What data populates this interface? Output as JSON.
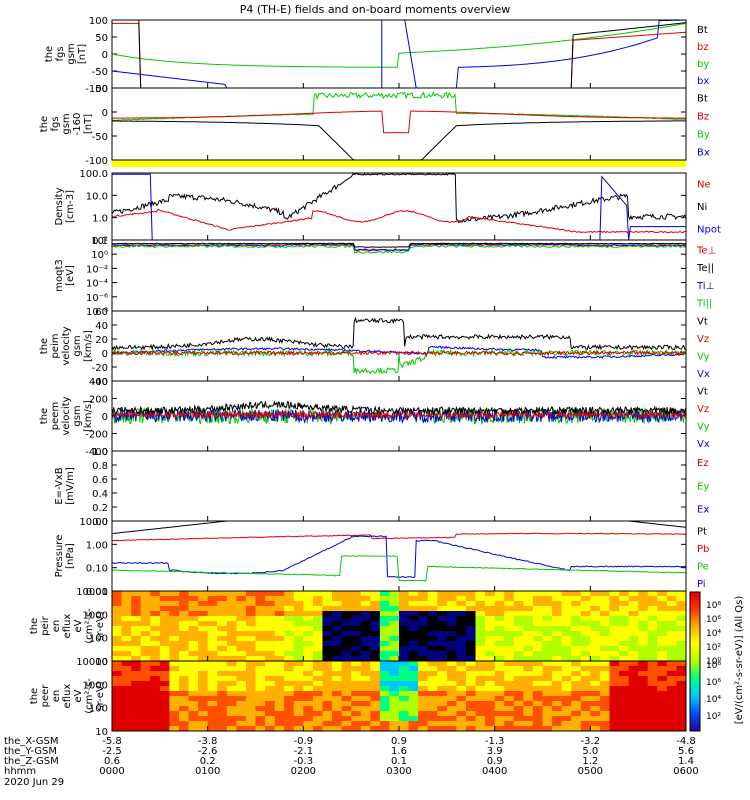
{
  "title": "P4 (TH-E) fields and on-board moments overview",
  "chart_data": {
    "type": "line",
    "x_range_hhmm": [
      "0000",
      "0600"
    ],
    "panels": [
      {
        "id": "fgs",
        "ylabel": [
          "the",
          "fgs",
          "gsm",
          "[nT]"
        ],
        "yrange": [
          -100,
          100
        ],
        "yticks": [
          "100",
          "50",
          "0",
          "-50",
          "-100"
        ],
        "legend": [
          {
            "name": "Bt",
            "color": "#000000"
          },
          {
            "name": "bz",
            "color": "#e00000"
          },
          {
            "name": "by",
            "color": "#00c800"
          },
          {
            "name": "bx",
            "color": "#0000e0"
          }
        ]
      },
      {
        "id": "fgs2",
        "ylabel": [
          "the",
          "fgs",
          "gsm",
          "-160",
          "[nT]"
        ],
        "yrange": [
          -130,
          80
        ],
        "yticks": [
          "50",
          "0",
          "-50",
          "-100"
        ],
        "legend": [
          {
            "name": "Bt",
            "color": "#000000"
          },
          {
            "name": "Bz",
            "color": "#e00000"
          },
          {
            "name": "By",
            "color": "#00c800"
          },
          {
            "name": "Bx",
            "color": "#0000e0"
          }
        ]
      },
      {
        "id": "density",
        "ylabel": [
          "Density",
          "[cm-3]"
        ],
        "yrange": [
          "0.1",
          "100.0"
        ],
        "yticks": [
          "100.0",
          "10.0",
          "1.0",
          "0.1"
        ],
        "legend": [
          {
            "name": "Ne",
            "color": "#e00000"
          },
          {
            "name": "Ni",
            "color": "#000000"
          },
          {
            "name": "Npot",
            "color": "#0000e0"
          }
        ]
      },
      {
        "id": "temp",
        "ylabel": [
          "moqt3",
          "[eV]"
        ],
        "yticks": [
          "10²",
          "10⁰",
          "10⁻²",
          "10⁻⁴",
          "10⁻⁶",
          "10⁻⁸"
        ],
        "legend": [
          {
            "name": "Te⊥",
            "color": "#e00000"
          },
          {
            "name": "Te||",
            "color": "#000000"
          },
          {
            "name": "Ti⊥",
            "color": "#0000e0"
          },
          {
            "name": "Ti||",
            "color": "#00c800"
          }
        ]
      },
      {
        "id": "peim",
        "ylabel": [
          "the",
          "peim",
          "velocity",
          "gsm",
          "[km/s]"
        ],
        "yrange": [
          -40,
          60
        ],
        "yticks": [
          "60",
          "40",
          "20",
          "0",
          "-20",
          "-40"
        ],
        "legend": [
          {
            "name": "Vt",
            "color": "#000000"
          },
          {
            "name": "Vz",
            "color": "#e00000"
          },
          {
            "name": "Vy",
            "color": "#00c800"
          },
          {
            "name": "Vx",
            "color": "#0000e0"
          }
        ]
      },
      {
        "id": "peem",
        "ylabel": [
          "the",
          "peem",
          "velocity",
          "gsm",
          "[km/s]"
        ],
        "yrange": [
          -400,
          400
        ],
        "yticks": [
          "400",
          "200",
          "0",
          "-200",
          "-400"
        ],
        "legend": [
          {
            "name": "Vt",
            "color": "#000000"
          },
          {
            "name": "Vz",
            "color": "#e00000"
          },
          {
            "name": "Vy",
            "color": "#00c800"
          },
          {
            "name": "Vx",
            "color": "#0000e0"
          }
        ]
      },
      {
        "id": "efield",
        "ylabel": [
          "E=-VxB",
          "[mV/m]"
        ],
        "yrange": [
          0,
          1
        ],
        "yticks": [
          "1.0",
          "0.8",
          "0.6",
          "0.4",
          "0.2",
          "0.0"
        ],
        "legend": [
          {
            "name": "Ez",
            "color": "#e00000"
          },
          {
            "name": "Ey",
            "color": "#00c800"
          },
          {
            "name": "Ex",
            "color": "#0000e0"
          }
        ]
      },
      {
        "id": "pressure",
        "ylabel": [
          "Pressure",
          "[nPa]"
        ],
        "yticks": [
          "10.00",
          "1.00",
          "0.10",
          "0.01"
        ],
        "legend": [
          {
            "name": "Pt",
            "color": "#000000"
          },
          {
            "name": "Pb",
            "color": "#e00000"
          },
          {
            "name": "Pe",
            "color": "#00c800"
          },
          {
            "name": "Pi",
            "color": "#0000e0"
          }
        ]
      },
      {
        "id": "peir",
        "ylabel": [
          "the",
          "peir",
          "en",
          "eflux",
          "eV",
          "(cm²-s-",
          "sr-eV)"
        ],
        "yticks": [
          "10000",
          "1000",
          "100",
          "10"
        ]
      },
      {
        "id": "peer",
        "ylabel": [
          "the",
          "peer",
          "en",
          "eflux",
          "eV",
          "(cm²-s-",
          "sr-eV)"
        ],
        "yticks": [
          "10000",
          "1000",
          "100",
          "10"
        ]
      }
    ],
    "colorbar": {
      "label": "[eV/(cm²-s-sr-eV)] (All Qs)",
      "top_ticks": [
        "10⁸",
        "10⁶",
        "10⁴",
        "10²",
        "10⁰"
      ],
      "bottom_ticks": [
        "10⁸",
        "10⁶",
        "10⁴",
        "10²"
      ]
    },
    "x_axis": {
      "rows": [
        {
          "label": "the_X-GSM",
          "values": [
            "-5.8",
            "-3.8",
            "-0.9",
            "0.9",
            "-1.3",
            "-3.2",
            "-4.8"
          ]
        },
        {
          "label": "the_Y-GSM",
          "values": [
            "-2.5",
            "-2.6",
            "-2.1",
            "1.6",
            "3.9",
            "5.0",
            "5.6"
          ]
        },
        {
          "label": "the_Z-GSM",
          "values": [
            "0.6",
            "0.2",
            "-0.3",
            "0.1",
            "0.9",
            "1.2",
            "1.4"
          ]
        },
        {
          "label": "hhmm",
          "values": [
            "0000",
            "0100",
            "0200",
            "0300",
            "0400",
            "0500",
            "0600"
          ]
        }
      ],
      "date": "2020 Jun 29"
    }
  }
}
